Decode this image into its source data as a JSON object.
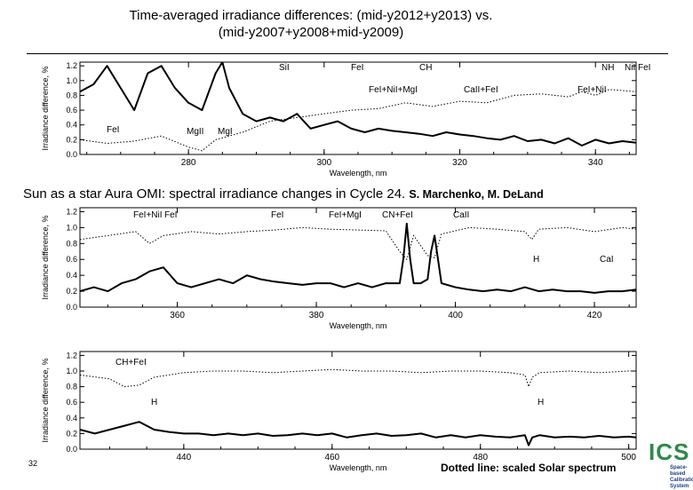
{
  "slide": {
    "title_line1": "Time-averaged irradiance differences: (mid-y2012+y2013) vs.",
    "title_line2": "(mid-y2007+y2008+mid-y2009)",
    "subtitle": "Sun as a star Aura OMI: spectral irradiance changes in Cycle 24.",
    "authors": "S. Marchenko, M. DeLand",
    "page_number": "32",
    "footnote": "Dotted line: scaled Solar spectrum",
    "logo_text": "ICS",
    "logo_caption": "Space-based Calibration System"
  },
  "chart_data": [
    {
      "type": "line",
      "ylabel": "Irradiance difference, %",
      "xlabel": "Wavelength, nm",
      "xlim": [
        264,
        346
      ],
      "ylim": [
        0,
        1.25
      ],
      "xticks": [
        280,
        300,
        320,
        340
      ],
      "yticks": [
        0.0,
        0.2,
        0.4,
        0.6,
        0.8,
        1.0,
        1.2
      ],
      "series": [
        {
          "style": "solid-bold",
          "x": [
            264,
            266,
            268,
            270,
            272,
            274,
            276,
            278,
            280,
            282,
            284,
            285,
            286,
            288,
            290,
            292,
            294,
            296,
            298,
            300,
            302,
            304,
            306,
            308,
            310,
            312,
            314,
            316,
            318,
            320,
            322,
            324,
            326,
            328,
            330,
            332,
            334,
            336,
            338,
            340,
            342,
            344,
            346
          ],
          "y": [
            0.85,
            0.95,
            1.2,
            0.9,
            0.6,
            1.1,
            1.2,
            0.9,
            0.7,
            0.6,
            1.1,
            1.25,
            0.9,
            0.55,
            0.45,
            0.5,
            0.45,
            0.55,
            0.35,
            0.4,
            0.45,
            0.35,
            0.3,
            0.35,
            0.32,
            0.3,
            0.28,
            0.25,
            0.3,
            0.27,
            0.25,
            0.22,
            0.2,
            0.25,
            0.18,
            0.2,
            0.15,
            0.22,
            0.12,
            0.2,
            0.15,
            0.18,
            0.16
          ]
        },
        {
          "style": "dotted",
          "x": [
            264,
            268,
            272,
            276,
            280,
            282,
            284,
            288,
            292,
            296,
            300,
            304,
            308,
            312,
            316,
            320,
            324,
            328,
            332,
            336,
            338,
            340,
            342,
            346
          ],
          "y": [
            0.2,
            0.15,
            0.18,
            0.25,
            0.1,
            0.05,
            0.2,
            0.3,
            0.45,
            0.5,
            0.55,
            0.6,
            0.62,
            0.7,
            0.65,
            0.72,
            0.7,
            0.8,
            0.82,
            0.78,
            0.85,
            0.8,
            0.88,
            0.85
          ]
        }
      ],
      "annotations": [
        "SiI",
        "FeI",
        "CH",
        "NH",
        "NiI FeI",
        "FeI+NiI+MgI",
        "CaII+FeI",
        "FeI+NiI",
        "FeI",
        "MgII",
        "MgI"
      ]
    },
    {
      "type": "line",
      "ylabel": "Irradiance difference, %",
      "xlabel": "Wavelength, nm",
      "xlim": [
        346,
        426
      ],
      "ylim": [
        0,
        1.25
      ],
      "xticks": [
        360,
        380,
        400,
        420
      ],
      "yticks": [
        0.0,
        0.2,
        0.4,
        0.6,
        0.8,
        1.0,
        1.2
      ],
      "series": [
        {
          "style": "solid-bold",
          "x": [
            346,
            348,
            350,
            352,
            354,
            356,
            358,
            360,
            362,
            364,
            366,
            368,
            370,
            372,
            374,
            376,
            378,
            380,
            382,
            384,
            386,
            388,
            390,
            392,
            392.5,
            393,
            393.5,
            394,
            395,
            396,
            396.5,
            397,
            397.5,
            398,
            400,
            402,
            404,
            406,
            408,
            410,
            412,
            414,
            416,
            418,
            420,
            422,
            424,
            426
          ],
          "y": [
            0.2,
            0.25,
            0.2,
            0.3,
            0.35,
            0.45,
            0.5,
            0.3,
            0.25,
            0.3,
            0.35,
            0.3,
            0.4,
            0.35,
            0.32,
            0.3,
            0.28,
            0.3,
            0.3,
            0.25,
            0.3,
            0.25,
            0.3,
            0.3,
            0.6,
            1.05,
            0.6,
            0.3,
            0.3,
            0.35,
            0.7,
            0.9,
            0.6,
            0.3,
            0.25,
            0.22,
            0.2,
            0.22,
            0.2,
            0.25,
            0.2,
            0.22,
            0.2,
            0.2,
            0.18,
            0.2,
            0.2,
            0.22
          ]
        },
        {
          "style": "dotted",
          "x": [
            346,
            350,
            354,
            356,
            358,
            362,
            366,
            370,
            374,
            378,
            382,
            386,
            390,
            392,
            393,
            394,
            396,
            397,
            398,
            402,
            406,
            410,
            411,
            412,
            416,
            420,
            424,
            426
          ],
          "y": [
            0.85,
            0.9,
            0.95,
            0.8,
            0.9,
            0.95,
            0.92,
            0.95,
            0.97,
            1.0,
            0.98,
            0.97,
            0.96,
            0.7,
            0.6,
            0.9,
            0.65,
            0.62,
            0.92,
            1.0,
            0.98,
            0.95,
            0.85,
            0.98,
            1.0,
            0.95,
            1.0,
            0.98
          ]
        }
      ],
      "annotations": [
        "FeI+NiI",
        "FeI",
        "FeI",
        "FeI+MgI",
        "CN+FeI",
        "CaII",
        "H",
        "CaI"
      ]
    },
    {
      "type": "line",
      "ylabel": "Irradiance difference, %",
      "xlabel": "Wavelength, nm",
      "xlim": [
        426,
        501
      ],
      "ylim": [
        0,
        1.25
      ],
      "xticks": [
        440,
        460,
        480,
        500
      ],
      "yticks": [
        0.0,
        0.2,
        0.4,
        0.6,
        0.8,
        1.0,
        1.2
      ],
      "series": [
        {
          "style": "solid-bold",
          "x": [
            426,
            428,
            430,
            432,
            434,
            436,
            438,
            440,
            442,
            444,
            446,
            448,
            450,
            452,
            454,
            456,
            458,
            460,
            462,
            464,
            466,
            468,
            470,
            472,
            474,
            476,
            478,
            480,
            482,
            484,
            486,
            486.5,
            487,
            488,
            490,
            492,
            494,
            496,
            498,
            500,
            501
          ],
          "y": [
            0.25,
            0.2,
            0.25,
            0.3,
            0.35,
            0.25,
            0.22,
            0.2,
            0.2,
            0.18,
            0.2,
            0.18,
            0.2,
            0.17,
            0.18,
            0.2,
            0.18,
            0.2,
            0.15,
            0.18,
            0.2,
            0.17,
            0.18,
            0.2,
            0.15,
            0.18,
            0.15,
            0.18,
            0.16,
            0.15,
            0.18,
            0.05,
            0.15,
            0.18,
            0.15,
            0.16,
            0.15,
            0.17,
            0.15,
            0.16,
            0.15
          ]
        },
        {
          "style": "dotted",
          "x": [
            426,
            430,
            432,
            434,
            436,
            440,
            444,
            448,
            452,
            456,
            460,
            464,
            468,
            472,
            476,
            480,
            484,
            486,
            486.5,
            487,
            488,
            492,
            496,
            500,
            501
          ],
          "y": [
            0.95,
            0.9,
            0.8,
            0.82,
            0.92,
            0.98,
            1.0,
            1.0,
            0.98,
            1.0,
            1.02,
            1.0,
            1.0,
            0.98,
            1.0,
            1.0,
            0.98,
            0.95,
            0.8,
            0.92,
            0.98,
            1.0,
            0.98,
            1.0,
            1.0
          ]
        }
      ],
      "annotations": [
        "CH+FeI",
        "H",
        "H"
      ]
    }
  ]
}
